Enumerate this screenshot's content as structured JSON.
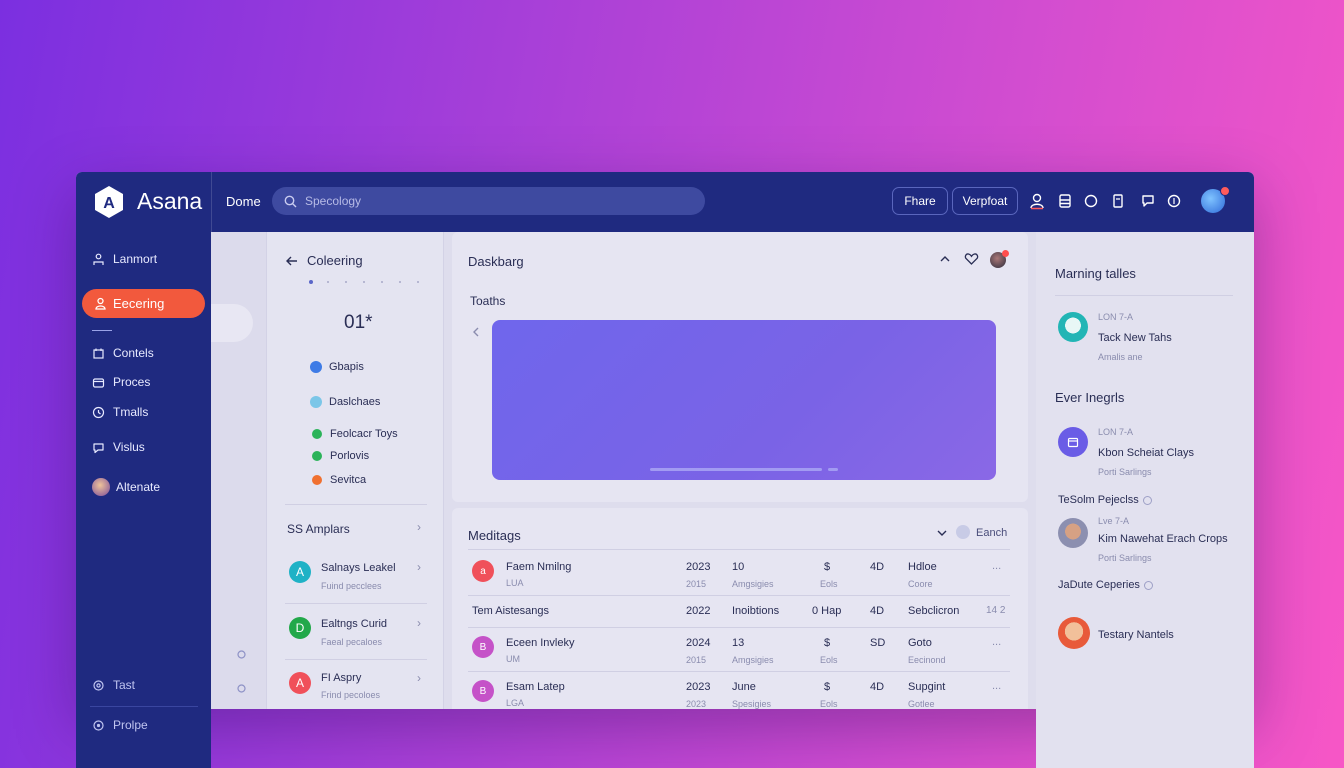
{
  "app": {
    "brand": "Asana",
    "logo_letter": "A"
  },
  "topbar": {
    "crumb": "Dome",
    "search_placeholder": "Specology",
    "btn1": "Fhare",
    "btn2": "Verpfoat",
    "icons": [
      "user-icon",
      "archive-icon",
      "shield-icon",
      "clipboard-icon",
      "chat-icon",
      "coin-icon"
    ]
  },
  "sidebar": {
    "items": [
      {
        "label": "Lanmort",
        "icon": "person-network-icon"
      },
      {
        "label": "Eecering",
        "icon": "user-icon",
        "active": true
      },
      {
        "label": "Contels",
        "icon": "calendar-icon"
      },
      {
        "label": "Proces",
        "icon": "folder-icon"
      },
      {
        "label": "Tmalls",
        "icon": "clock-icon"
      },
      {
        "label": "Vislus",
        "icon": "chat-icon"
      },
      {
        "label": "Altenate",
        "icon": "avatar"
      }
    ],
    "bottom": [
      {
        "label": "Tast",
        "icon": "gear-icon"
      },
      {
        "label": "Prolpe",
        "icon": "settings-icon"
      }
    ]
  },
  "col2": {
    "back_title": "Coleering",
    "counter": "01*",
    "list": [
      {
        "label": "Gbapis",
        "color": "#3e7be6"
      },
      {
        "label": "Daslchaes",
        "color": "#7bc6e8"
      },
      {
        "label": "Feolcacr Toys",
        "color": "#2bb35a"
      },
      {
        "label": "Porlovis",
        "color": "#2bb35a"
      },
      {
        "label": "Sevitca",
        "color": "#f07030"
      }
    ],
    "section_title": "SS Amplars",
    "people": [
      {
        "initial": "A",
        "name": "Salnays Leakel",
        "sub": "Fuind pecclees",
        "color": "#1fb2c6"
      },
      {
        "initial": "D",
        "name": "Ealtngs Curid",
        "sub": "Faeal pecaloes",
        "color": "#22a84a"
      },
      {
        "initial": "A",
        "name": "FI Aspry",
        "sub": "Frind pecoloes",
        "color": "#f0505a"
      }
    ]
  },
  "dashboard": {
    "title": "Daskbarg",
    "subtitle": "Toaths",
    "banner_color": "#7367ea"
  },
  "meetings": {
    "title": "Meditags",
    "search_label": "Eanch",
    "rows": [
      {
        "avatar": "a",
        "avatar_color": "#f0505a",
        "name": "Faem Nmilng",
        "name_sub": "LUA",
        "year": "2023",
        "year_sub": "2015",
        "num": "10",
        "num_sub": "Amgsigies",
        "sym": "$",
        "sym_sub": "Eols",
        "code": "4D",
        "status": "Hdloe",
        "status_sub": "Coore",
        "more": "..."
      },
      {
        "avatar": "",
        "avatar_color": "",
        "name": "Tem  Aistesangs",
        "name_sub": "",
        "year": "2022",
        "year_sub": "",
        "num": "Inoibtions",
        "num_sub": "",
        "sym": "0 Hap",
        "sym_sub": "",
        "code": "4D",
        "status": "Sebclicron",
        "status_sub": "",
        "more": "14 2"
      },
      {
        "avatar": "B",
        "avatar_color": "#c552c8",
        "name": "Eceen Invleky",
        "name_sub": "UM",
        "year": "2024",
        "year_sub": "2015",
        "num": "13",
        "num_sub": "Amgsigies",
        "sym": "$",
        "sym_sub": "Eols",
        "code": "SD",
        "status": "Goto",
        "status_sub": "Eecinond",
        "more": "..."
      },
      {
        "avatar": "B",
        "avatar_color": "#c552c8",
        "name": "Esam Latep",
        "name_sub": "LGA",
        "year": "2023",
        "year_sub": "2023",
        "num": "June",
        "num_sub": "Spesigies",
        "sym": "$",
        "sym_sub": "Eols",
        "code": "4D",
        "status": "Supgint",
        "status_sub": "Gotlee",
        "more": "..."
      }
    ]
  },
  "right": {
    "section1": "Marning talles",
    "item1": {
      "tag": "LON 7-A",
      "title": "Tack New Tahs",
      "sub": "Amalis ane"
    },
    "section2": "Ever Inegrls",
    "item2": {
      "tag": "LON 7-A",
      "title": "Kbon Scheiat Clays",
      "sub": "Porti Sarlings"
    },
    "label_a": "TeSolm Pejeclss",
    "item3": {
      "tag": "Lve 7-A",
      "title": "Kim Nawehat Erach Crops",
      "sub": "Porti Sarlings"
    },
    "label_b": "JaDute Ceperies",
    "item4": {
      "title": "Testary Nantels"
    }
  }
}
